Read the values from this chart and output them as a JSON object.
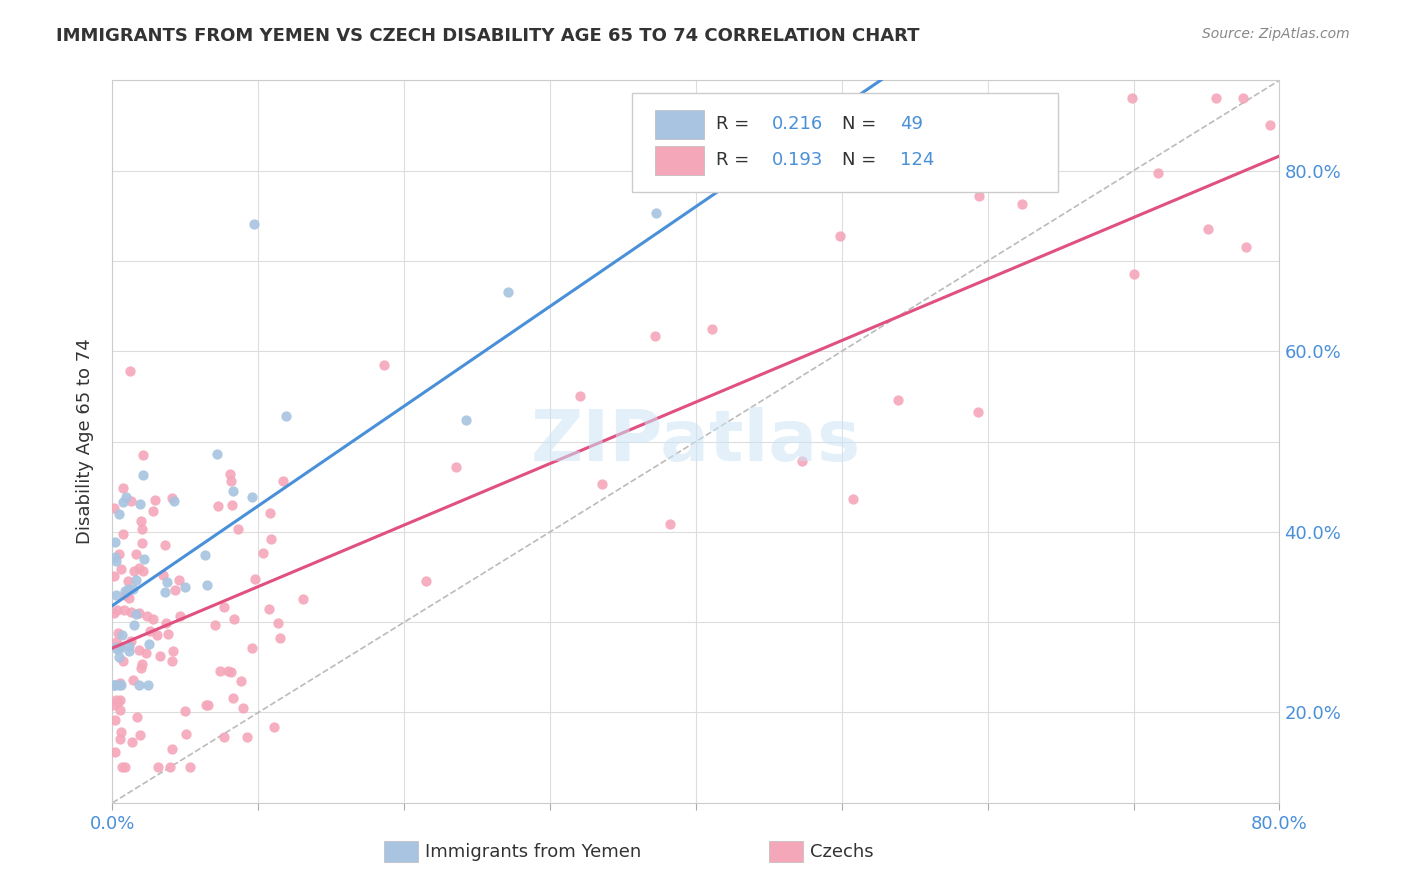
{
  "title": "IMMIGRANTS FROM YEMEN VS CZECH DISABILITY AGE 65 TO 74 CORRELATION CHART",
  "source": "Source: ZipAtlas.com",
  "ylabel": "Disability Age 65 to 74",
  "xlim": [
    0.0,
    0.8
  ],
  "ylim": [
    0.0,
    0.8
  ],
  "legend_R1": "0.216",
  "legend_N1": "49",
  "legend_R2": "0.193",
  "legend_N2": "124",
  "color_yemen": "#a8c4e0",
  "color_czech": "#f4a7b9",
  "trendline_yemen_color": "#4a90d9",
  "trendline_czech_color": "#e05080",
  "watermark": "ZIPatlas"
}
